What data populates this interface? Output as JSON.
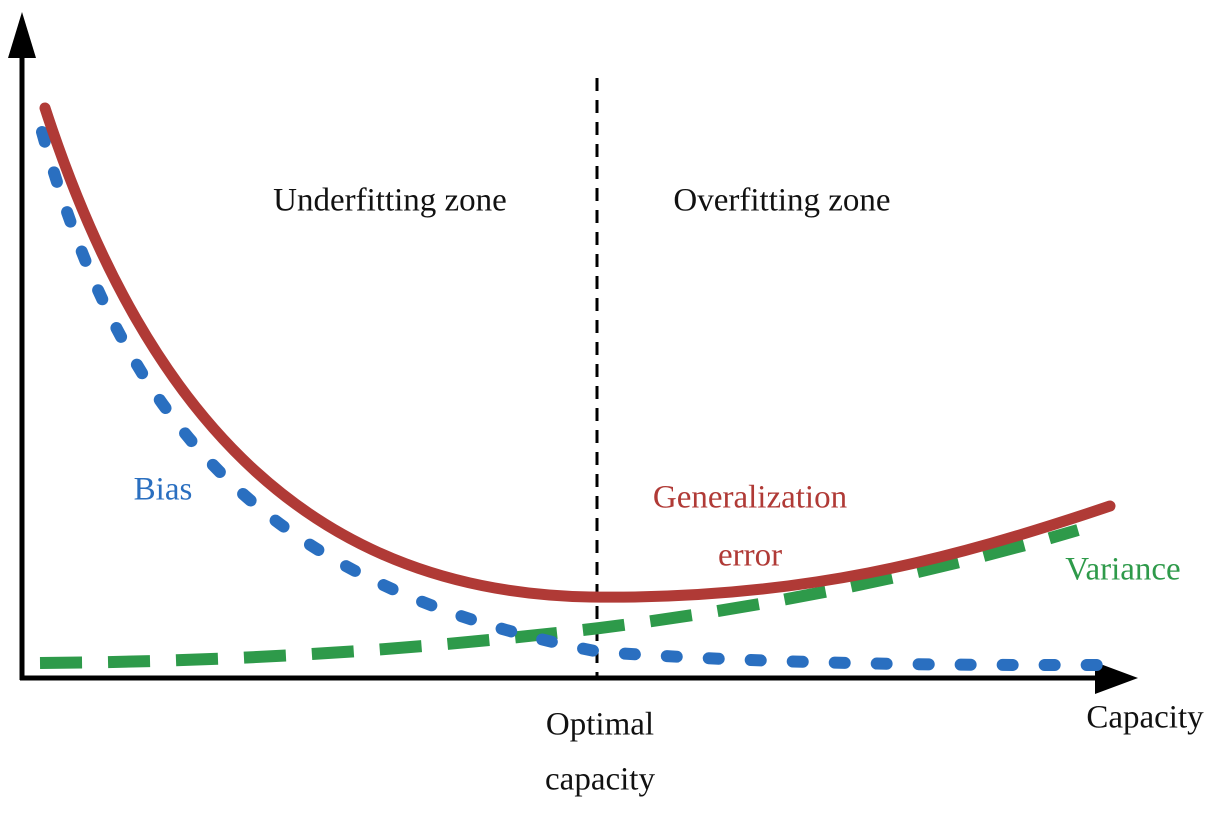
{
  "zones": {
    "underfitting": "Underfitting zone",
    "overfitting": "Overfitting zone"
  },
  "curves": {
    "bias": "Bias",
    "generalization_error": [
      "Generalization",
      "error"
    ],
    "variance": "Variance"
  },
  "axes": {
    "x_label": "Capacity"
  },
  "marker": {
    "label": [
      "Optimal",
      "capacity"
    ]
  }
}
